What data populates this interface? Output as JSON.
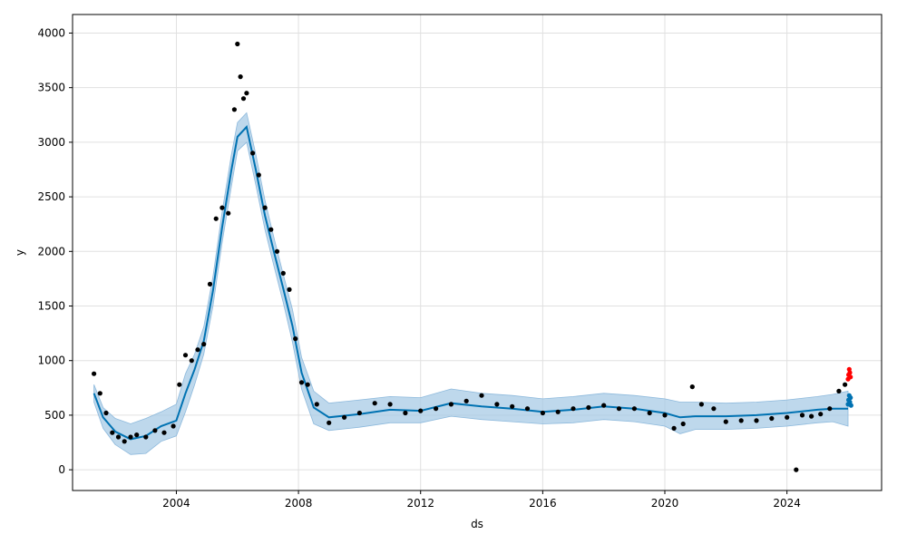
{
  "chart_data": {
    "type": "scatter",
    "title": "",
    "xlabel": "ds",
    "ylabel": "y",
    "xlim": [
      2000.6,
      2027.1
    ],
    "ylim": [
      -190,
      4170
    ],
    "x_ticks": [
      2004,
      2008,
      2012,
      2016,
      2020,
      2024
    ],
    "x_tick_labels": [
      "2004",
      "2008",
      "2012",
      "2016",
      "2020",
      "2024"
    ],
    "y_ticks": [
      0,
      500,
      1000,
      1500,
      2000,
      2500,
      3000,
      3500,
      4000
    ],
    "y_tick_labels": [
      "0",
      "500",
      "1000",
      "1500",
      "2000",
      "2500",
      "3000",
      "3500",
      "4000"
    ],
    "grid": true,
    "colors": {
      "observed": "#000000",
      "forecast": "#0072B2",
      "interval": "#A8CBE6",
      "anomaly": "#FF0000",
      "grid": "#E0E0E0"
    },
    "series": [
      {
        "kind": "interval",
        "x": [
          2001.3,
          2001.6,
          2002.0,
          2002.5,
          2003.0,
          2003.5,
          2004.0,
          2004.3,
          2004.6,
          2004.9,
          2005.2,
          2005.5,
          2005.8,
          2006.0,
          2006.3,
          2006.6,
          2006.9,
          2007.2,
          2007.5,
          2007.8,
          2008.1,
          2008.5,
          2009.0,
          2010.0,
          2011.0,
          2012.0,
          2013.0,
          2014.0,
          2015.0,
          2016.0,
          2017.0,
          2018.0,
          2019.0,
          2020.0,
          2020.5,
          2021.0,
          2022.0,
          2023.0,
          2024.0,
          2025.0,
          2025.5,
          2026.0
        ],
        "upper": [
          780,
          570,
          470,
          420,
          470,
          530,
          600,
          880,
          1060,
          1310,
          1770,
          2360,
          2880,
          3180,
          3270,
          2890,
          2470,
          2120,
          1790,
          1470,
          1030,
          720,
          610,
          640,
          670,
          660,
          740,
          700,
          680,
          650,
          670,
          700,
          680,
          650,
          620,
          620,
          610,
          620,
          640,
          670,
          690,
          720
        ],
        "lower": [
          620,
          380,
          230,
          140,
          150,
          260,
          310,
          530,
          780,
          1060,
          1500,
          2080,
          2590,
          2920,
          3000,
          2610,
          2200,
          1860,
          1530,
          1170,
          740,
          420,
          360,
          390,
          430,
          430,
          490,
          460,
          440,
          420,
          430,
          460,
          440,
          400,
          330,
          370,
          370,
          380,
          400,
          430,
          440,
          400
        ]
      },
      {
        "kind": "forecast-line",
        "x": [
          2001.3,
          2001.6,
          2002.0,
          2002.5,
          2003.0,
          2003.5,
          2004.0,
          2004.3,
          2004.6,
          2004.9,
          2005.2,
          2005.5,
          2005.8,
          2006.0,
          2006.3,
          2006.6,
          2006.9,
          2007.2,
          2007.5,
          2007.8,
          2008.1,
          2008.5,
          2009.0,
          2010.0,
          2011.0,
          2012.0,
          2013.0,
          2014.0,
          2015.0,
          2016.0,
          2017.0,
          2018.0,
          2019.0,
          2020.0,
          2020.5,
          2021.0,
          2022.0,
          2023.0,
          2024.0,
          2025.0,
          2025.5,
          2026.0
        ],
        "y": [
          700,
          480,
          350,
          280,
          310,
          400,
          450,
          700,
          920,
          1180,
          1640,
          2220,
          2740,
          3050,
          3140,
          2750,
          2330,
          1990,
          1660,
          1320,
          890,
          570,
          480,
          510,
          550,
          540,
          610,
          580,
          560,
          530,
          550,
          580,
          560,
          520,
          480,
          490,
          490,
          500,
          520,
          550,
          560,
          560
        ]
      },
      {
        "kind": "observed",
        "x": [
          2001.3,
          2001.5,
          2001.7,
          2001.9,
          2002.1,
          2002.3,
          2002.5,
          2002.7,
          2003.0,
          2003.3,
          2003.6,
          2003.9,
          2004.1,
          2004.3,
          2004.5,
          2004.7,
          2004.9,
          2005.1,
          2005.3,
          2005.5,
          2005.7,
          2005.9,
          2006.0,
          2006.1,
          2006.2,
          2006.3,
          2006.5,
          2006.7,
          2006.9,
          2007.1,
          2007.3,
          2007.5,
          2007.7,
          2007.9,
          2008.1,
          2008.3,
          2008.6,
          2009.0,
          2009.5,
          2010.0,
          2010.5,
          2011.0,
          2011.5,
          2012.0,
          2012.5,
          2013.0,
          2013.5,
          2014.0,
          2014.5,
          2015.0,
          2015.5,
          2016.0,
          2016.5,
          2017.0,
          2017.5,
          2018.0,
          2018.5,
          2019.0,
          2019.5,
          2020.0,
          2020.3,
          2020.6,
          2020.9,
          2021.2,
          2021.6,
          2022.0,
          2022.5,
          2023.0,
          2023.5,
          2024.0,
          2024.3,
          2024.5,
          2024.8,
          2025.1,
          2025.4,
          2025.7,
          2025.9
        ],
        "y": [
          880,
          700,
          520,
          340,
          300,
          260,
          300,
          320,
          300,
          360,
          340,
          400,
          780,
          1050,
          1000,
          1100,
          1150,
          1700,
          2300,
          2400,
          2350,
          3300,
          3900,
          3600,
          3400,
          3450,
          2900,
          2700,
          2400,
          2200,
          2000,
          1800,
          1650,
          1200,
          800,
          780,
          600,
          430,
          480,
          520,
          610,
          600,
          520,
          540,
          560,
          600,
          630,
          680,
          600,
          580,
          560,
          520,
          530,
          560,
          570,
          590,
          560,
          560,
          520,
          500,
          380,
          420,
          760,
          600,
          560,
          440,
          450,
          450,
          470,
          480,
          0,
          500,
          490,
          510,
          560,
          720,
          780
        ]
      },
      {
        "kind": "forecast-points",
        "x": [
          2026.0,
          2026.02,
          2026.04,
          2026.06,
          2026.08,
          2026.1
        ],
        "y": [
          600,
          640,
          680,
          620,
          660,
          590
        ]
      },
      {
        "kind": "anomaly-points",
        "x": [
          2026.0,
          2026.02,
          2026.04,
          2026.06,
          2026.08
        ],
        "y": [
          830,
          870,
          920,
          890,
          850
        ]
      }
    ]
  }
}
